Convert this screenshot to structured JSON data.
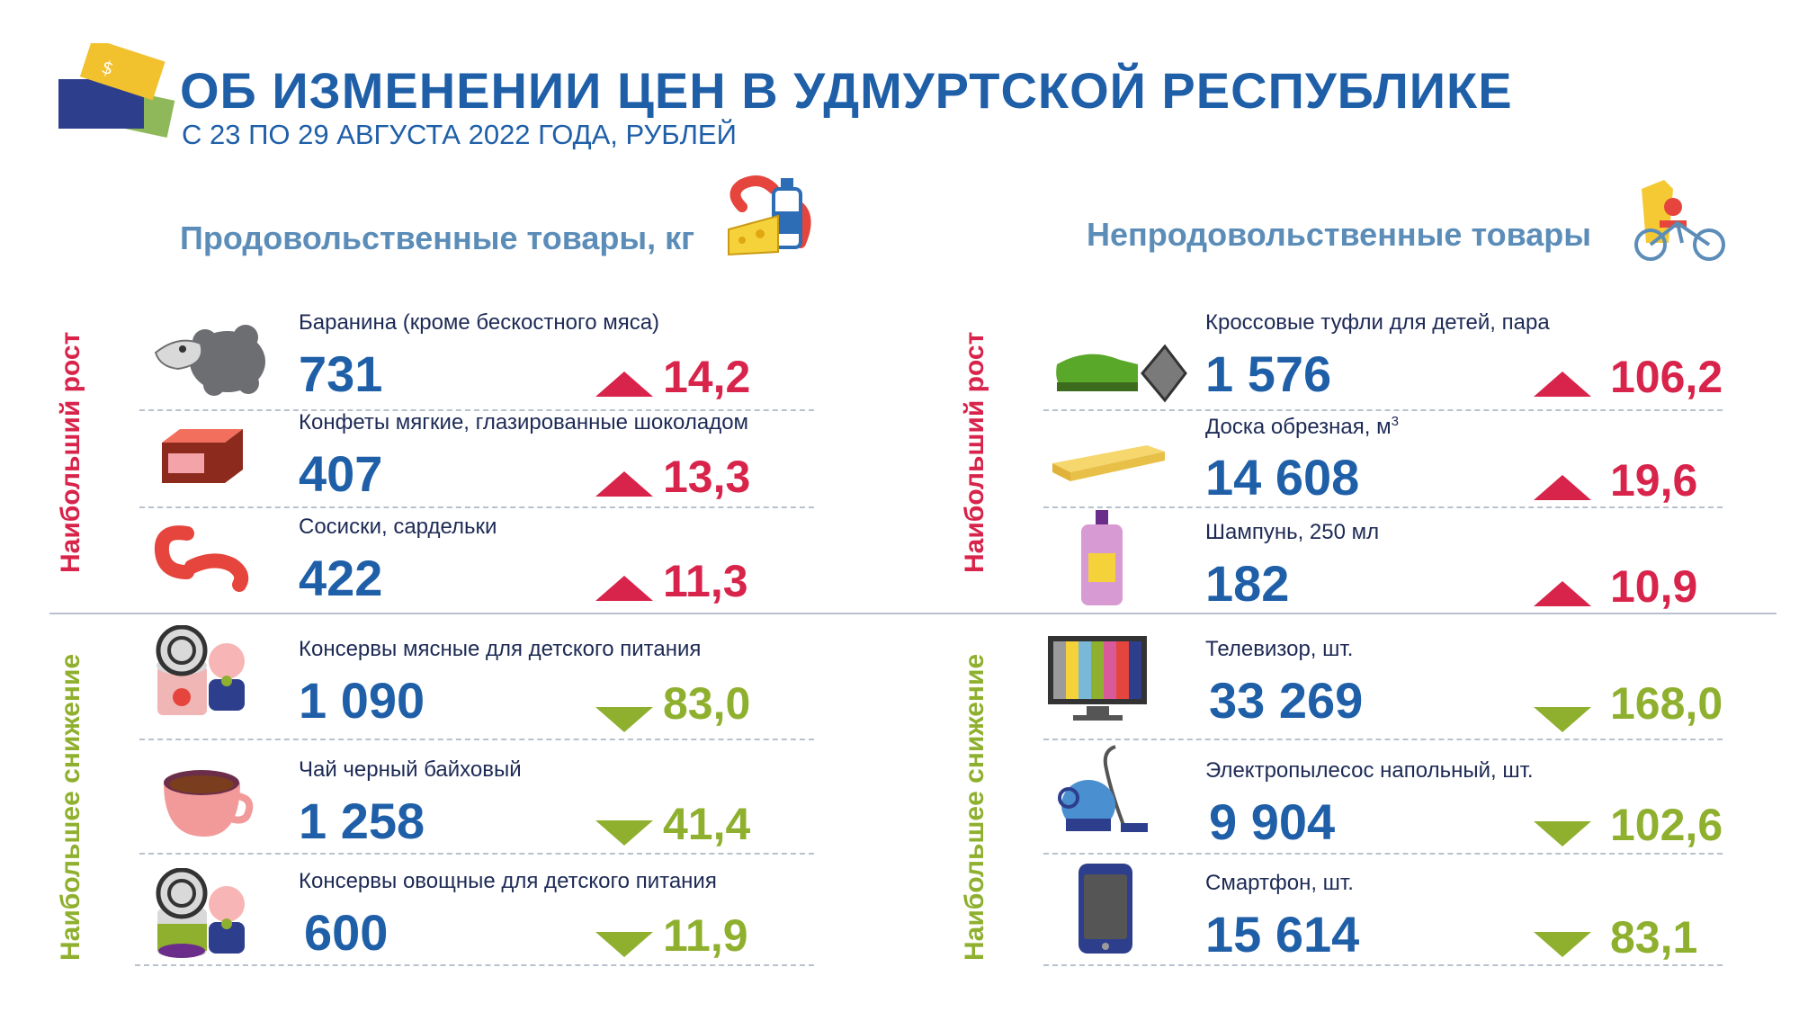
{
  "header": {
    "title": "ОБ ИЗМЕНЕНИИ ЦЕН В УДМУРТСКОЙ РЕСПУБЛИКЕ",
    "subtitle": "С 23 ПО 29 АВГУСТА 2022 ГОДА, РУБЛЕЙ",
    "logo_icon": "price-tags-icon"
  },
  "food": {
    "title": "Продовольственные товары, кг",
    "icon": "groceries-icon",
    "growth_label": "Наибольший рост",
    "decline_label": "Наибольшее снижение",
    "growth": [
      {
        "name": "Баранина (кроме бескостного мяса)",
        "price": "731",
        "change": "14,2",
        "icon": "sheep-icon"
      },
      {
        "name": "Конфеты мягкие, глазированные шоколадом",
        "price": "407",
        "change": "13,3",
        "icon": "candy-icon"
      },
      {
        "name": "Сосиски, сардельки",
        "price": "422",
        "change": "11,3",
        "icon": "sausage-icon"
      }
    ],
    "decline": [
      {
        "name": "Консервы мясные для детского питания",
        "price": "1 090",
        "change": "83,0",
        "icon": "baby-meat-can-icon"
      },
      {
        "name": "Чай черный байховый",
        "price": "1 258",
        "change": "41,4",
        "icon": "tea-cup-icon"
      },
      {
        "name": "Консервы овощные для детского питания",
        "price": "600",
        "change": "11,9",
        "icon": "baby-veg-can-icon"
      }
    ]
  },
  "nonfood": {
    "title": "Непродовольственные товары",
    "icon": "clothes-bicycle-icon",
    "growth_label": "Наибольший рост",
    "decline_label": "Наибольшее снижение",
    "growth": [
      {
        "name": "Кроссовые туфли для детей, пара",
        "price": "1 576",
        "change": "106,2",
        "icon": "sneaker-icon"
      },
      {
        "name": "Доска обрезная, м",
        "name_sup": "3",
        "price": "14 608",
        "change": "19,6",
        "icon": "wood-board-icon"
      },
      {
        "name": "Шампунь, 250 мл",
        "price": "182",
        "change": "10,9",
        "icon": "shampoo-icon"
      }
    ],
    "decline": [
      {
        "name": "Телевизор, шт.",
        "price": "33 269",
        "change": "168,0",
        "icon": "tv-icon"
      },
      {
        "name": "Электропылесос напольный, шт.",
        "price": "9 904",
        "change": "102,6",
        "icon": "vacuum-icon"
      },
      {
        "name": "Смартфон, шт.",
        "price": "15 614",
        "change": "83,1",
        "icon": "smartphone-icon"
      }
    ]
  },
  "colors": {
    "title_blue": "#1f5fa8",
    "section_blue": "#5b8db8",
    "growth_red": "#d8234a",
    "decline_green": "#8fb02e"
  }
}
